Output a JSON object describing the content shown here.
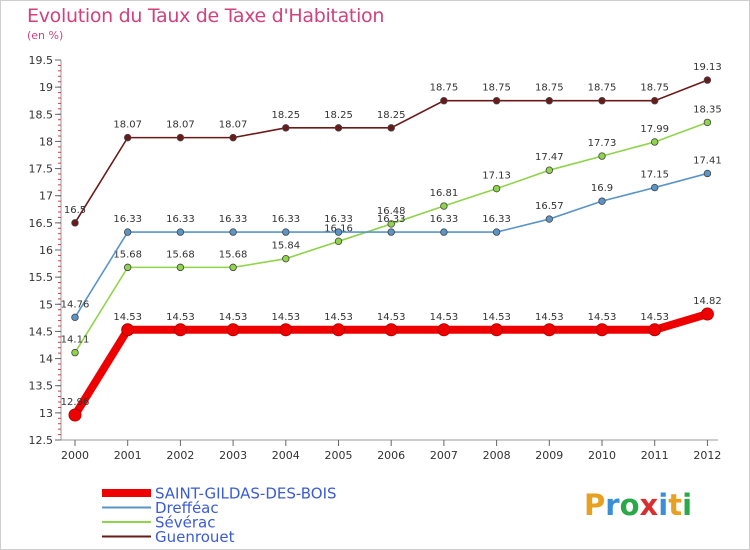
{
  "title": "Evolution du Taux de Taxe d'Habitation",
  "subtitle": "(en %)",
  "brand": {
    "letters": [
      "P",
      "r",
      "o",
      "x",
      "i",
      "t",
      "i"
    ],
    "colors": [
      "#e8a020",
      "#3b8fd6",
      "#2aa84a",
      "#d83030",
      "#3b8fd6",
      "#e8a020",
      "#2aa84a"
    ]
  },
  "chart_data": {
    "type": "line",
    "x": [
      "2000",
      "2001",
      "2002",
      "2003",
      "2004",
      "2005",
      "2006",
      "2007",
      "2008",
      "2009",
      "2010",
      "2011",
      "2012"
    ],
    "ylim": [
      12.5,
      19.5
    ],
    "yticks": [
      "12.5",
      "13",
      "13.5",
      "14",
      "14.5",
      "15",
      "15.5",
      "16",
      "16.5",
      "17",
      "17.5",
      "18",
      "18.5",
      "19",
      "19.5"
    ],
    "grid": false,
    "legend_position": "bottom-left",
    "series": [
      {
        "name": "Guenrouet",
        "color": "#6b1a1a",
        "values": [
          16.5,
          18.07,
          18.07,
          18.07,
          18.25,
          18.25,
          18.25,
          18.75,
          18.75,
          18.75,
          18.75,
          18.75,
          19.13
        ],
        "labels": [
          "16.5",
          "18.07",
          "18.07",
          "18.07",
          "18.25",
          "18.25",
          "18.25",
          "18.75",
          "18.75",
          "18.75",
          "18.75",
          "18.75",
          "19.13"
        ]
      },
      {
        "name": "Sévérac",
        "color": "#8fd44a",
        "values": [
          14.11,
          15.68,
          15.68,
          15.68,
          15.84,
          16.16,
          16.48,
          16.81,
          17.13,
          17.47,
          17.73,
          17.99,
          18.35
        ],
        "labels": [
          "14.11",
          "15.68",
          "15.68",
          "15.68",
          "15.84",
          "16.16",
          "16.48",
          "16.81",
          "17.13",
          "17.47",
          "17.73",
          "17.99",
          "18.35"
        ]
      },
      {
        "name": "Drefféac",
        "color": "#5b95c8",
        "values": [
          14.76,
          16.33,
          16.33,
          16.33,
          16.33,
          16.33,
          16.33,
          16.33,
          16.33,
          16.57,
          16.9,
          17.15,
          17.41
        ],
        "labels": [
          "14.76",
          "16.33",
          "16.33",
          "16.33",
          "16.33",
          "16.33",
          "16.33",
          "16.33",
          "16.33",
          "16.57",
          "16.9",
          "17.15",
          "17.41"
        ]
      },
      {
        "name": "SAINT-GILDAS-DES-BOIS",
        "color": "#ee0000",
        "values": [
          12.96,
          14.53,
          14.53,
          14.53,
          14.53,
          14.53,
          14.53,
          14.53,
          14.53,
          14.53,
          14.53,
          14.53,
          14.82
        ],
        "labels": [
          "12.96",
          "14.53",
          "14.53",
          "14.53",
          "14.53",
          "14.53",
          "14.53",
          "14.53",
          "14.53",
          "14.53",
          "14.53",
          "14.53",
          "14.82"
        ]
      }
    ],
    "legend_order": [
      "SAINT-GILDAS-DES-BOIS",
      "Drefféac",
      "Sévérac",
      "Guenrouet"
    ]
  }
}
